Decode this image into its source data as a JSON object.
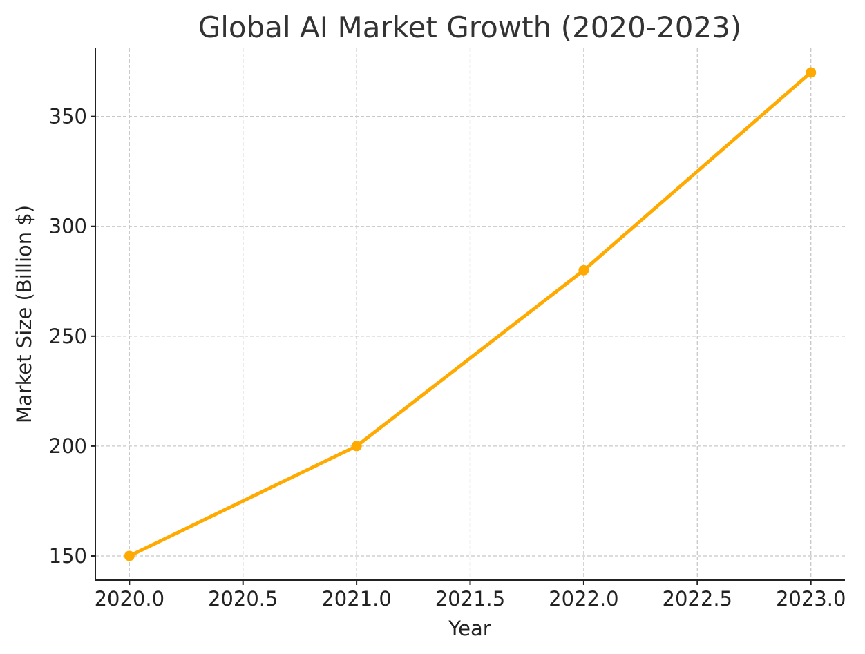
{
  "chart_data": {
    "type": "line",
    "title": "Global AI Market Growth (2020-2023)",
    "xlabel": "Year",
    "ylabel": "Market Size (Billion $)",
    "x": [
      2020,
      2021,
      2022,
      2023
    ],
    "series": [
      {
        "values": [
          150,
          200,
          280,
          370
        ],
        "color": "#FFAA00"
      }
    ],
    "xlim": [
      2019.85,
      2023.15
    ],
    "ylim": [
      139,
      381
    ],
    "xticks": [
      2020.0,
      2020.5,
      2021.0,
      2021.5,
      2022.0,
      2022.5,
      2023.0
    ],
    "xtick_labels": [
      "2020.0",
      "2020.5",
      "2021.0",
      "2021.5",
      "2022.0",
      "2022.5",
      "2023.0"
    ],
    "yticks": [
      150,
      200,
      250,
      300,
      350
    ],
    "ytick_labels": [
      "150",
      "200",
      "250",
      "300",
      "350"
    ],
    "grid": true,
    "spines": [
      "left",
      "bottom"
    ]
  }
}
